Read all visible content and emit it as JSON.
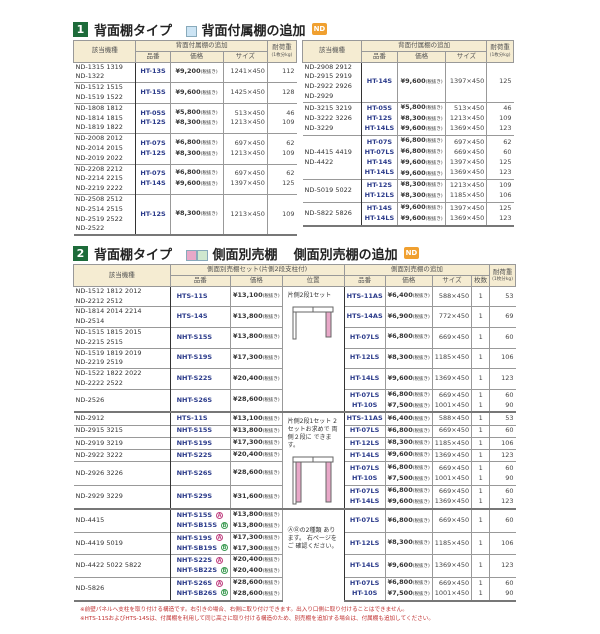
{
  "section1": {
    "number": "1",
    "title": "背面棚タイプ",
    "subtitle": "背面付属棚の追加",
    "badge": "ND",
    "header": {
      "models": "該当機種",
      "group": "背面付属棚の追加",
      "code": "品番",
      "price": "価格",
      "size": "サイズ",
      "load": "耐荷重",
      "load_unit": "(1枚分kg)"
    },
    "tax": "(税抜き)",
    "left": [
      {
        "models": [
          "ND-1315 1319",
          "ND-1322"
        ],
        "items": [
          {
            "code": "HT-13S",
            "price": "¥9,200",
            "size": "1241×450",
            "load": "112"
          }
        ]
      },
      {
        "models": [
          "ND-1512 1515",
          "ND-1519 1522"
        ],
        "items": [
          {
            "code": "HT-15S",
            "price": "¥9,600",
            "size": "1425×450",
            "load": "128"
          }
        ]
      },
      {
        "models": [
          "ND-1808 1812",
          "ND-1814 1815",
          "ND-1819 1822"
        ],
        "items": [
          {
            "code": "HT-05S",
            "price": "¥5,800",
            "size": "513×450",
            "load": "46"
          },
          {
            "code": "HT-12S",
            "price": "¥8,300",
            "size": "1213×450",
            "load": "109"
          }
        ]
      },
      {
        "models": [
          "ND-2008 2012",
          "ND-2014 2015",
          "ND-2019 2022"
        ],
        "items": [
          {
            "code": "HT-07S",
            "price": "¥6,800",
            "size": "697×450",
            "load": "62"
          },
          {
            "code": "HT-12S",
            "price": "¥8,300",
            "size": "1213×450",
            "load": "109"
          }
        ]
      },
      {
        "models": [
          "ND-2208 2212",
          "ND-2214 2215",
          "ND-2219 2222"
        ],
        "items": [
          {
            "code": "HT-07S",
            "price": "¥6,800",
            "size": "697×450",
            "load": "62"
          },
          {
            "code": "HT-14S",
            "price": "¥9,600",
            "size": "1397×450",
            "load": "125"
          }
        ]
      },
      {
        "models": [
          "ND-2508 2512",
          "ND-2514 2515",
          "ND-2519 2522",
          "ND-2522"
        ],
        "items": [
          {
            "code": "HT-12S",
            "price": "¥8,300",
            "size": "1213×450",
            "load": "109"
          }
        ]
      }
    ],
    "right": [
      {
        "models": [
          "ND-2908 2912",
          "ND-2915 2919",
          "ND-2922 2926",
          "ND-2929"
        ],
        "items": [
          {
            "code": "HT-14S",
            "price": "¥9,600",
            "size": "1397×450",
            "load": "125"
          }
        ]
      },
      {
        "models": [
          "ND-3215 3219",
          "ND-3222 3226",
          "ND-3229"
        ],
        "items": [
          {
            "code": "HT-05S",
            "price": "¥5,800",
            "size": "513×450",
            "load": "46"
          },
          {
            "code": "HT-12S",
            "price": "¥8,300",
            "size": "1213×450",
            "load": "109"
          },
          {
            "code": "HT-14LS",
            "price": "¥9,600",
            "size": "1369×450",
            "load": "123"
          }
        ]
      },
      {
        "models": [
          "ND-4415 4419",
          "ND-4422"
        ],
        "items": [
          {
            "code": "HT-07S",
            "price": "¥6,800",
            "size": "697×450",
            "load": "62"
          },
          {
            "code": "HT-07LS",
            "price": "¥6,800",
            "size": "669×450",
            "load": "60"
          },
          {
            "code": "HT-14S",
            "price": "¥9,600",
            "size": "1397×450",
            "load": "125"
          },
          {
            "code": "HT-14LS",
            "price": "¥9,600",
            "size": "1369×450",
            "load": "123"
          }
        ]
      },
      {
        "models": [
          "ND-5019 5022"
        ],
        "items": [
          {
            "code": "HT-12S",
            "price": "¥8,300",
            "size": "1213×450",
            "load": "109"
          },
          {
            "code": "HT-12LS",
            "price": "¥8,300",
            "size": "1185×450",
            "load": "106"
          }
        ]
      },
      {
        "models": [
          "ND-5822 5826"
        ],
        "items": [
          {
            "code": "HT-14S",
            "price": "¥9,600",
            "size": "1397×450",
            "load": "125"
          },
          {
            "code": "HT-14LS",
            "price": "¥9,600",
            "size": "1369×450",
            "load": "123"
          }
        ]
      }
    ]
  },
  "section2": {
    "number": "2",
    "title": "背面棚タイプ",
    "subtitle1": "側面別売棚",
    "subtitle2": "側面別売棚の追加",
    "badge": "ND",
    "header": {
      "models": "該当機種",
      "set_group": "側面別売棚セット(片側2段支柱付)",
      "code": "品番",
      "price": "価格",
      "position": "位置",
      "add_group": "側面別売棚の追加",
      "code2": "品番",
      "price2": "価格",
      "size": "サイズ",
      "qty": "枚数",
      "load": "耐荷重",
      "load_unit": "(1枚分kg)"
    },
    "groups": [
      {
        "position_text": "片側2段1セット",
        "diagram": "one-side",
        "rows": [
          {
            "models": [
              "ND-1512 1812 2012",
              "ND-2212 2512"
            ],
            "sets": [
              {
                "code": "HTS-11S",
                "price": "¥13,100"
              }
            ],
            "adds": [
              {
                "code": "HTS-11AS",
                "price": "¥6,400",
                "size": "588×450",
                "qty": "1",
                "load": "53"
              }
            ]
          },
          {
            "models": [
              "ND-1814 2014 2214",
              "ND-2514"
            ],
            "sets": [
              {
                "code": "HTS-14S",
                "price": "¥13,800"
              }
            ],
            "adds": [
              {
                "code": "HTS-14AS",
                "price": "¥6,900",
                "size": "772×450",
                "qty": "1",
                "load": "69"
              }
            ]
          },
          {
            "models": [
              "ND-1515 1815 2015",
              "ND-2215 2515"
            ],
            "sets": [
              {
                "code": "NHT-S15S",
                "price": "¥13,800"
              }
            ],
            "adds": [
              {
                "code": "HT-07LS",
                "price": "¥6,800",
                "size": "669×450",
                "qty": "1",
                "load": "60"
              }
            ]
          },
          {
            "models": [
              "ND-1519 1819 2019",
              "ND-2219 2519"
            ],
            "sets": [
              {
                "code": "NHT-S19S",
                "price": "¥17,300"
              }
            ],
            "adds": [
              {
                "code": "HT-12LS",
                "price": "¥8,300",
                "size": "1185×450",
                "qty": "1",
                "load": "106"
              }
            ]
          },
          {
            "models": [
              "ND-1522 1822 2022",
              "ND-2222 2522"
            ],
            "sets": [
              {
                "code": "NHT-S22S",
                "price": "¥20,400"
              }
            ],
            "adds": [
              {
                "code": "HT-14LS",
                "price": "¥9,600",
                "size": "1369×450",
                "qty": "1",
                "load": "123"
              }
            ]
          },
          {
            "models": [
              "ND-2526"
            ],
            "sets": [
              {
                "code": "NHT-S26S",
                "price": "¥28,600"
              }
            ],
            "adds": [
              {
                "code": "HT-07LS",
                "price": "¥6,800",
                "size": "669×450",
                "qty": "1",
                "load": "60"
              },
              {
                "code": "HT-10S",
                "price": "¥7,500",
                "size": "1001×450",
                "qty": "1",
                "load": "90"
              }
            ]
          }
        ]
      },
      {
        "position_text": "片側2段1セット 2セットお求めで 両側２段に できます。",
        "diagram": "two-side",
        "rows": [
          {
            "models": [
              "ND-2912"
            ],
            "sets": [
              {
                "code": "HTS-11S",
                "price": "¥13,100"
              }
            ],
            "adds": [
              {
                "code": "HTS-11AS",
                "price": "¥6,400",
                "size": "588×450",
                "qty": "1",
                "load": "53"
              }
            ]
          },
          {
            "models": [
              "ND-2915 3215"
            ],
            "sets": [
              {
                "code": "NHT-S15S",
                "price": "¥13,800"
              }
            ],
            "adds": [
              {
                "code": "HT-07LS",
                "price": "¥6,800",
                "size": "669×450",
                "qty": "1",
                "load": "60"
              }
            ]
          },
          {
            "models": [
              "ND-2919 3219"
            ],
            "sets": [
              {
                "code": "NHT-S19S",
                "price": "¥17,300"
              }
            ],
            "adds": [
              {
                "code": "HT-12LS",
                "price": "¥8,300",
                "size": "1185×450",
                "qty": "1",
                "load": "106"
              }
            ]
          },
          {
            "models": [
              "ND-2922 3222"
            ],
            "sets": [
              {
                "code": "NHT-S22S",
                "price": "¥20,400"
              }
            ],
            "adds": [
              {
                "code": "HT-14LS",
                "price": "¥9,600",
                "size": "1369×450",
                "qty": "1",
                "load": "123"
              }
            ]
          },
          {
            "models": [
              "ND-2926 3226"
            ],
            "sets": [
              {
                "code": "NHT-S26S",
                "price": "¥28,600"
              }
            ],
            "adds": [
              {
                "code": "HT-07LS",
                "price": "¥6,800",
                "size": "669×450",
                "qty": "1",
                "load": "60"
              },
              {
                "code": "HT-10S",
                "price": "¥7,500",
                "size": "1001×450",
                "qty": "1",
                "load": "90"
              }
            ]
          },
          {
            "models": [
              "ND-2929 3229"
            ],
            "sets": [
              {
                "code": "NHT-S29S",
                "price": "¥31,600"
              }
            ],
            "adds": [
              {
                "code": "HT-07LS",
                "price": "¥6,800",
                "size": "669×450",
                "qty": "1",
                "load": "60"
              },
              {
                "code": "HT-14LS",
                "price": "¥9,600",
                "size": "1369×450",
                "qty": "1",
                "load": "123"
              }
            ]
          }
        ]
      },
      {
        "position_text": "ⒶⒷの2種類 あります。 右ページをご 確認ください。",
        "diagram": "",
        "rows": [
          {
            "models": [
              "ND-4415"
            ],
            "sets": [
              {
                "code": "NHT-S15S",
                "mark": "A",
                "price": "¥13,800"
              },
              {
                "code": "NHT-SB15S",
                "mark": "B",
                "price": "¥13,800"
              }
            ],
            "adds": [
              {
                "code": "HT-07LS",
                "price": "¥6,800",
                "size": "669×450",
                "qty": "1",
                "load": "60"
              }
            ]
          },
          {
            "models": [
              "ND-4419 5019"
            ],
            "sets": [
              {
                "code": "NHT-S19S",
                "mark": "A",
                "price": "¥17,300"
              },
              {
                "code": "NHT-SB19S",
                "mark": "B",
                "price": "¥17,300"
              }
            ],
            "adds": [
              {
                "code": "HT-12LS",
                "price": "¥8,300",
                "size": "1185×450",
                "qty": "1",
                "load": "106"
              }
            ]
          },
          {
            "models": [
              "ND-4422 5022 5822"
            ],
            "sets": [
              {
                "code": "NHT-S22S",
                "mark": "A",
                "price": "¥20,400"
              },
              {
                "code": "NHT-SB22S",
                "mark": "B",
                "price": "¥20,400"
              }
            ],
            "adds": [
              {
                "code": "HT-14LS",
                "price": "¥9,600",
                "size": "1369×450",
                "qty": "1",
                "load": "123"
              }
            ]
          },
          {
            "models": [
              "ND-5826"
            ],
            "sets": [
              {
                "code": "NHT-S26S",
                "mark": "A",
                "price": "¥28,600"
              },
              {
                "code": "NHT-SB26S",
                "mark": "B",
                "price": "¥28,600"
              }
            ],
            "adds": [
              {
                "code": "HT-07LS",
                "price": "¥6,800",
                "size": "669×450",
                "qty": "1",
                "load": "60"
              },
              {
                "code": "HT-10S",
                "price": "¥7,500",
                "size": "1001×450",
                "qty": "1",
                "load": "90"
              }
            ]
          }
        ]
      }
    ]
  },
  "notes": [
    "※前壁パネルへ支柱を取り付ける構造です。右引きの場合、右側に取り付けできます。出入り口側に取り付けることはできません。",
    "※HTS-11SおよびHTS-14Sは、付属棚を利用して同じ高さに取り付ける構造のため、別売棚を追加する場合は、付属棚も追加してください。"
  ],
  "colors": {
    "section_number": "#1d6b3a",
    "badge": "#f0a030",
    "header_bg": "#f5ecd2",
    "code_text": "#2a3a8a",
    "note_text": "#c03030",
    "shelf_pink": "#e8a8c8",
    "shelf_blue": "#cce4f4",
    "shelf_green": "#cfe8cf"
  }
}
